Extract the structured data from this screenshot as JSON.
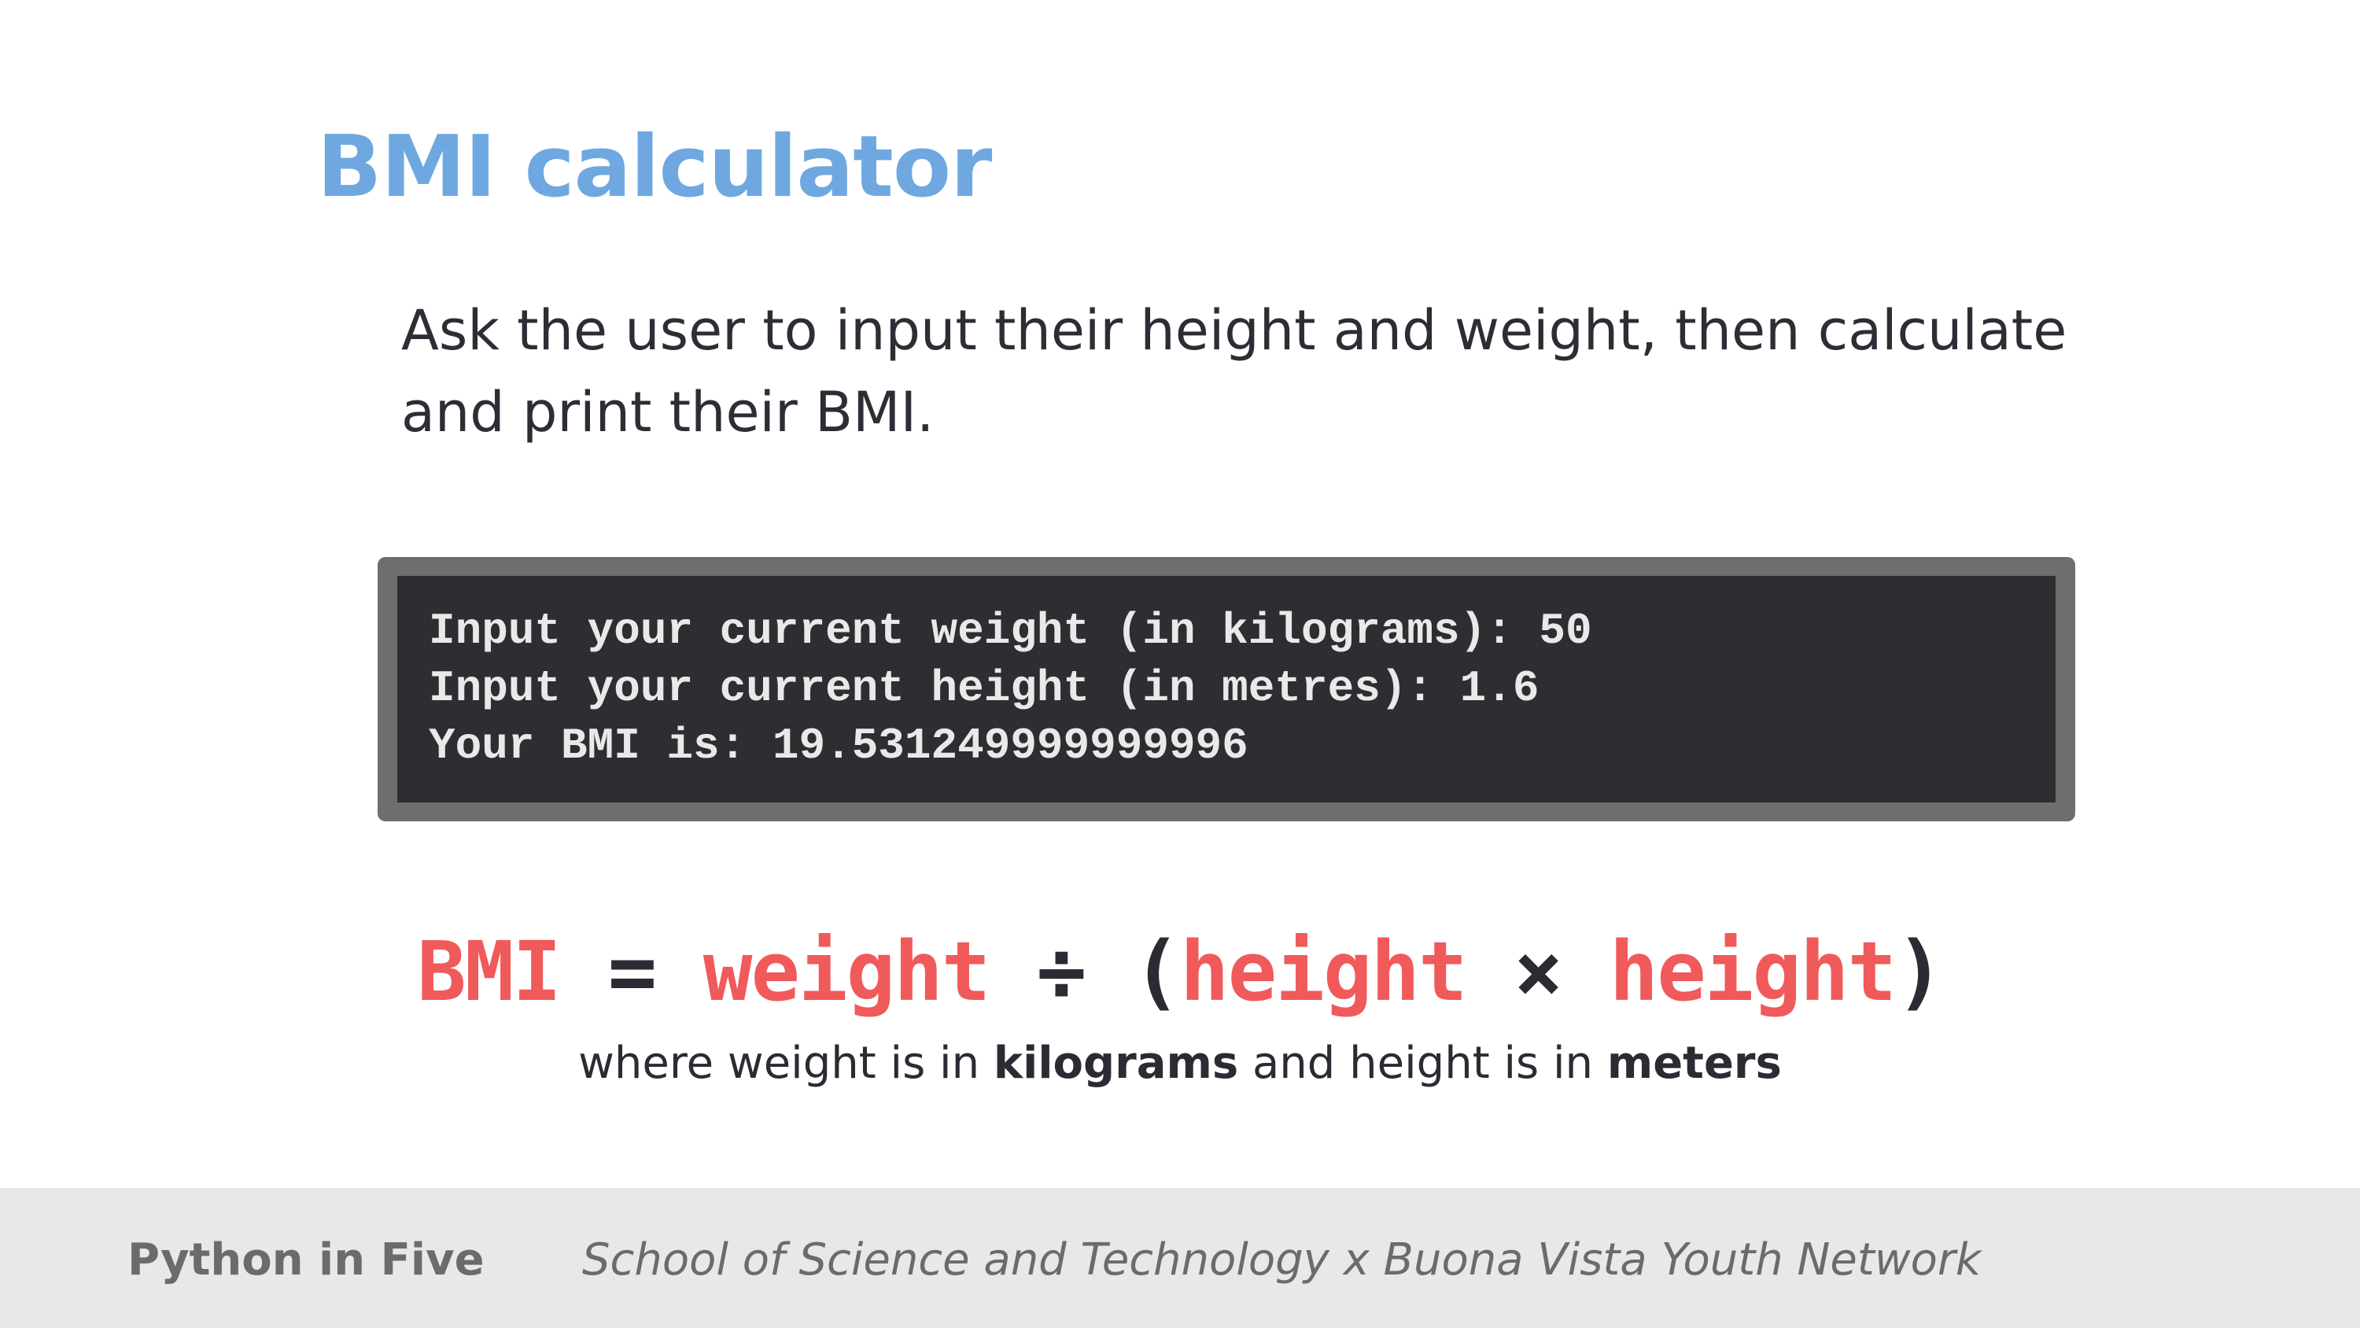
{
  "slide": {
    "title": "BMI calculator",
    "description": "Ask the user to input their height and weight, then calculate and print their BMI.",
    "terminal": {
      "lines": [
        "Input your current weight (in kilograms): 50",
        "Input your current height (in metres): 1.6",
        "Your BMI is: 19.531249999999996"
      ]
    },
    "formula": {
      "bmi": "BMI",
      "equals": "=",
      "weight": "weight",
      "divide": "÷",
      "open_paren": "(",
      "height_1": "height",
      "times": "×",
      "height_2": "height",
      "close_paren": ")"
    },
    "note": {
      "part1": "where weight is in ",
      "unit1": "kilograms",
      "part2": " and height is in ",
      "unit2": "meters"
    },
    "footer": {
      "left": "Python in Five",
      "right": "School of Science and Technology x Buona Vista Youth Network"
    }
  },
  "colors": {
    "title": "#6fa8e0",
    "formula_variable": "#f05a5a",
    "terminal_background": "#2f2d31",
    "terminal_frame": "#6e6e6e",
    "footer_background": "#e8e8e8"
  }
}
